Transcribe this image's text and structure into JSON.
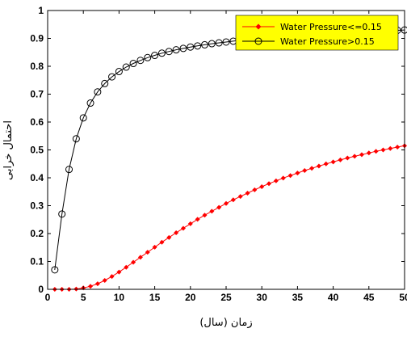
{
  "chart_data": {
    "type": "line",
    "xlabel": "زمان (سال)",
    "ylabel": "احتمال خرابی",
    "xlim": [
      0,
      50
    ],
    "ylim": [
      0,
      1
    ],
    "xticks": [
      "0",
      "5",
      "10",
      "15",
      "20",
      "25",
      "30",
      "35",
      "40",
      "45",
      "50"
    ],
    "yticks": [
      "0",
      "0.1",
      "0.2",
      "0.3",
      "0.4",
      "0.5",
      "0.6",
      "0.7",
      "0.8",
      "0.9",
      "1"
    ],
    "grid": false,
    "legend_position": "top-right",
    "legend_bg": "#ffff00",
    "series": [
      {
        "name": "Water Pressure<=0.15",
        "color": "#ff0000",
        "marker": "diamond-filled",
        "x": [
          1,
          2,
          3,
          4,
          5,
          6,
          7,
          8,
          9,
          10,
          11,
          12,
          13,
          14,
          15,
          16,
          17,
          18,
          19,
          20,
          21,
          22,
          23,
          24,
          25,
          26,
          27,
          28,
          29,
          30,
          31,
          32,
          33,
          34,
          35,
          36,
          37,
          38,
          39,
          40,
          41,
          42,
          43,
          44,
          45,
          46,
          47,
          48,
          49,
          50
        ],
        "values": [
          0,
          0,
          0,
          0.001,
          0.005,
          0.011,
          0.02,
          0.032,
          0.046,
          0.062,
          0.079,
          0.097,
          0.115,
          0.133,
          0.151,
          0.169,
          0.186,
          0.203,
          0.219,
          0.235,
          0.251,
          0.266,
          0.28,
          0.294,
          0.308,
          0.321,
          0.333,
          0.345,
          0.357,
          0.368,
          0.379,
          0.389,
          0.399,
          0.408,
          0.417,
          0.426,
          0.434,
          0.442,
          0.45,
          0.457,
          0.464,
          0.471,
          0.477,
          0.483,
          0.489,
          0.495,
          0.5,
          0.505,
          0.51,
          0.515
        ]
      },
      {
        "name": "Water Pressure>0.15",
        "color": "#000000",
        "marker": "circle-open",
        "x": [
          1,
          2,
          3,
          4,
          5,
          6,
          7,
          8,
          9,
          10,
          11,
          12,
          13,
          14,
          15,
          16,
          17,
          18,
          19,
          20,
          21,
          22,
          23,
          24,
          25,
          26,
          27,
          28,
          29,
          30,
          31,
          32,
          33,
          34,
          35,
          36,
          37,
          38,
          39,
          40,
          41,
          42,
          43,
          44,
          45,
          46,
          47,
          48,
          49,
          50
        ],
        "values": [
          0.07,
          0.27,
          0.43,
          0.54,
          0.615,
          0.668,
          0.708,
          0.738,
          0.762,
          0.781,
          0.797,
          0.81,
          0.821,
          0.831,
          0.839,
          0.847,
          0.853,
          0.859,
          0.864,
          0.869,
          0.873,
          0.877,
          0.881,
          0.884,
          0.887,
          0.89,
          0.893,
          0.896,
          0.898,
          0.9,
          0.903,
          0.905,
          0.907,
          0.909,
          0.911,
          0.912,
          0.914,
          0.916,
          0.917,
          0.919,
          0.92,
          0.921,
          0.923,
          0.924,
          0.925,
          0.926,
          0.927,
          0.928,
          0.929,
          0.93
        ]
      }
    ]
  }
}
